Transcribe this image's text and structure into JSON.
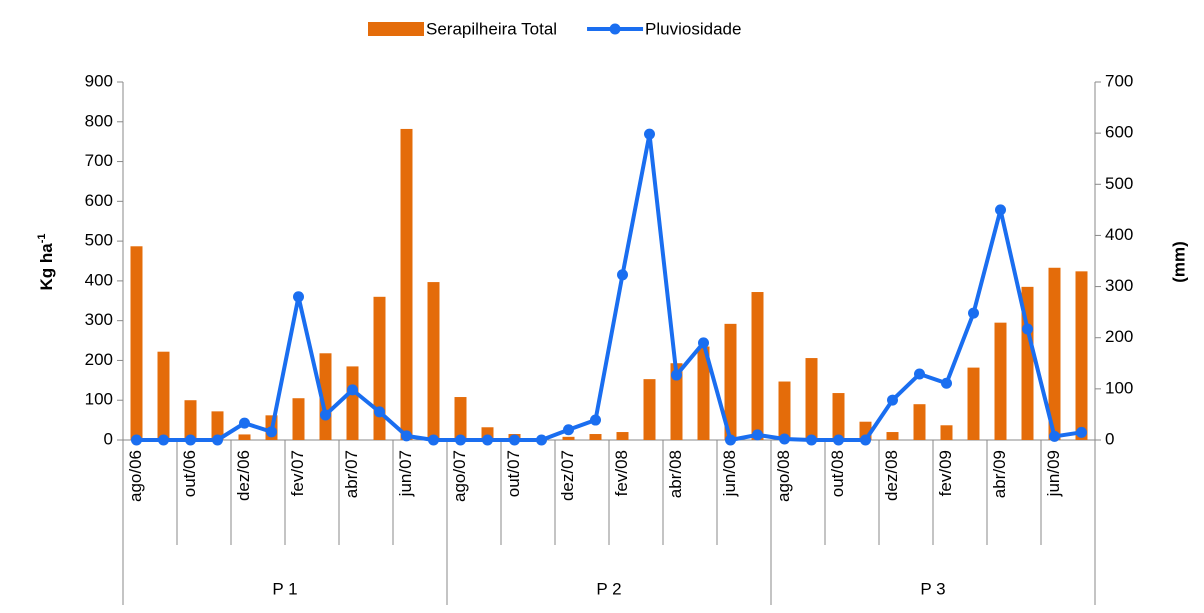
{
  "chart_data": {
    "type": "bar-line",
    "categories": [
      "ago/06",
      null,
      "out/06",
      null,
      "dez/06",
      null,
      "fev/07",
      null,
      "abr/07",
      null,
      "jun/07",
      null,
      "ago/07",
      null,
      "out/07",
      null,
      "dez/07",
      null,
      "fev/08",
      null,
      "abr/08",
      null,
      "jun/08",
      null,
      "ago/08",
      null,
      "out/08",
      null,
      "dez/08",
      null,
      "fev/09",
      null,
      "abr/09",
      null,
      "jun/09",
      null
    ],
    "groups": [
      "P 1",
      "P 2",
      "P 3"
    ],
    "series": [
      {
        "name": "Serapilheira Total",
        "type": "bar",
        "color": "#e46c0a",
        "values": [
          487,
          222,
          100,
          72,
          14,
          62,
          105,
          218,
          185,
          360,
          782,
          397,
          108,
          32,
          15,
          0,
          8,
          15,
          20,
          153,
          193,
          235,
          292,
          372,
          147,
          206,
          118,
          46,
          20,
          90,
          37,
          182,
          295,
          385,
          433,
          424
        ]
      },
      {
        "name": "Pluviosidade",
        "type": "line",
        "axis": "y2",
        "color": "#1a6ef0",
        "values": [
          0,
          0,
          0,
          0,
          33,
          16,
          280,
          49,
          98,
          55,
          8,
          0,
          0,
          0,
          0,
          0,
          20,
          39,
          323,
          598,
          127,
          190,
          0,
          10,
          2,
          0,
          0,
          0,
          78,
          129,
          111,
          248,
          450,
          217,
          7,
          15
        ]
      }
    ],
    "ylabel": {
      "text": "Kg ha",
      "sup": "-1"
    },
    "y2label": "(mm)",
    "ylim": [
      0,
      900
    ],
    "yticks": [
      0,
      100,
      200,
      300,
      400,
      500,
      600,
      700,
      800,
      900
    ],
    "y2lim": [
      0,
      700
    ],
    "y2ticks": [
      0,
      100,
      200,
      300,
      400,
      500,
      600,
      700
    ],
    "legend": "top"
  }
}
